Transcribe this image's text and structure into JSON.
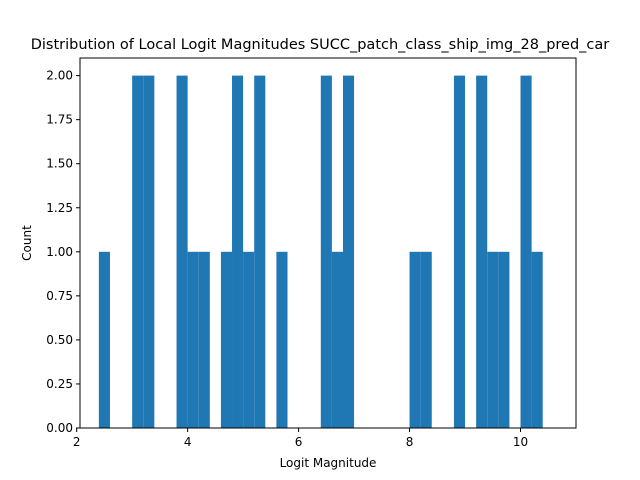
{
  "chart_data": {
    "type": "bar",
    "title": "Distribution of Local Logit Magnitudes SUCC_patch_class_ship_img_28_pred_car",
    "xlabel": "Logit Magnitude",
    "ylabel": "Count",
    "xlim": [
      2.06,
      11.0
    ],
    "ylim": [
      0,
      2.1
    ],
    "x_ticks": [
      2,
      4,
      6,
      8,
      10
    ],
    "y_ticks": [
      0.0,
      0.25,
      0.5,
      0.75,
      1.0,
      1.25,
      1.5,
      1.75,
      2.0
    ],
    "bar_color": "#1f77b4",
    "bin_width": 0.2,
    "bins": [
      {
        "start": 2.4,
        "count": 1
      },
      {
        "start": 3.0,
        "count": 2
      },
      {
        "start": 3.2,
        "count": 2
      },
      {
        "start": 3.8,
        "count": 2
      },
      {
        "start": 4.0,
        "count": 1
      },
      {
        "start": 4.2,
        "count": 1
      },
      {
        "start": 4.6,
        "count": 1
      },
      {
        "start": 4.8,
        "count": 2
      },
      {
        "start": 5.0,
        "count": 1
      },
      {
        "start": 5.2,
        "count": 2
      },
      {
        "start": 5.6,
        "count": 1
      },
      {
        "start": 6.4,
        "count": 2
      },
      {
        "start": 6.6,
        "count": 1
      },
      {
        "start": 6.8,
        "count": 2
      },
      {
        "start": 8.0,
        "count": 1
      },
      {
        "start": 8.2,
        "count": 1
      },
      {
        "start": 8.8,
        "count": 2
      },
      {
        "start": 9.2,
        "count": 2
      },
      {
        "start": 9.4,
        "count": 1
      },
      {
        "start": 9.6,
        "count": 1
      },
      {
        "start": 10.0,
        "count": 2
      },
      {
        "start": 10.2,
        "count": 1
      }
    ]
  }
}
